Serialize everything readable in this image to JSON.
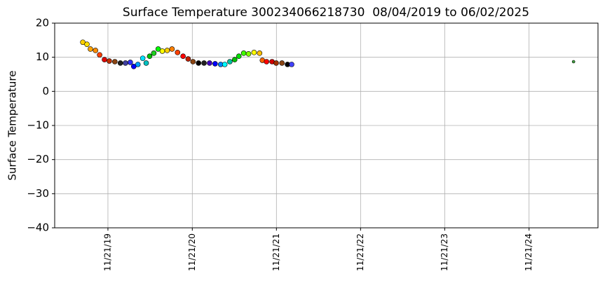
{
  "chart_data": {
    "type": "scatter",
    "title": "Surface Temperature 300234066218730  08/04/2019 to 06/02/2025",
    "ylabel": "Surface Temperature",
    "x": [
      "2019-08-04",
      "2019-08-22",
      "2019-09-06",
      "2019-09-28",
      "2019-10-16",
      "2019-11-06",
      "2019-11-27",
      "2019-12-21",
      "2020-01-14",
      "2020-02-05",
      "2020-02-26",
      "2020-03-12",
      "2020-03-30",
      "2020-04-20",
      "2020-05-05",
      "2020-05-20",
      "2020-06-07",
      "2020-06-26",
      "2020-07-14",
      "2020-08-04",
      "2020-08-25",
      "2020-09-18",
      "2020-10-12",
      "2020-11-03",
      "2020-11-24",
      "2020-12-18",
      "2021-01-11",
      "2021-02-04",
      "2021-02-28",
      "2021-03-24",
      "2021-04-11",
      "2021-05-03",
      "2021-05-24",
      "2021-06-11",
      "2021-07-02",
      "2021-07-23",
      "2021-08-16",
      "2021-09-09",
      "2021-09-21",
      "2021-10-09",
      "2021-11-02",
      "2021-11-20",
      "2021-12-15",
      "2022-01-08",
      "2022-01-26",
      "2025-06-02"
    ],
    "values": [
      14.4,
      13.8,
      12.4,
      12,
      10.7,
      9.3,
      8.9,
      8.7,
      8.3,
      8.3,
      8.5,
      7.3,
      7.9,
      9.7,
      8.3,
      10.3,
      11.2,
      12.4,
      11.8,
      12,
      12.4,
      11.4,
      10.3,
      9.5,
      8.7,
      8.3,
      8.3,
      8.3,
      8.1,
      7.9,
      7.9,
      8.7,
      9.3,
      10.3,
      11.2,
      11,
      11.4,
      11.2,
      9.1,
      8.7,
      8.7,
      8.3,
      8.3,
      7.9,
      7.9,
      8.7
    ],
    "colors": [
      "#ffd000",
      "#ffe000",
      "#ffa500",
      "#ff8c00",
      "#ff4000",
      "#e00000",
      "#c03000",
      "#8b4513",
      "#202020",
      "#4040a0",
      "#3030ff",
      "#0000ff",
      "#00a0ff",
      "#00e0ff",
      "#00c0c0",
      "#00c000",
      "#20d020",
      "#00ff00",
      "#ffff00",
      "#ffd000",
      "#ff8000",
      "#ff4000",
      "#ff0000",
      "#c02000",
      "#8b4513",
      "#000000",
      "#202020",
      "#4000c0",
      "#0000ff",
      "#0080ff",
      "#00ffff",
      "#00c0a0",
      "#00c000",
      "#00e000",
      "#40ff00",
      "#80ff00",
      "#ffff00",
      "#ffc000",
      "#ff6000",
      "#ff0000",
      "#d00000",
      "#a03000",
      "#8b4513",
      "#000000",
      "#4040ff",
      "#40a040"
    ],
    "xlim": [
      "2019-04-04",
      "2025-09-16"
    ],
    "xticks": [
      {
        "value": "2019-11-21",
        "label": "11/21/19"
      },
      {
        "value": "2020-11-21",
        "label": "11/21/20"
      },
      {
        "value": "2021-11-21",
        "label": "11/21/21"
      },
      {
        "value": "2022-11-21",
        "label": "11/21/22"
      },
      {
        "value": "2023-11-21",
        "label": "11/21/23"
      },
      {
        "value": "2024-11-21",
        "label": "11/21/24"
      }
    ],
    "ylim": [
      -40,
      20
    ],
    "yticks": [
      {
        "value": -40,
        "label": "−40"
      },
      {
        "value": -30,
        "label": "−30"
      },
      {
        "value": -20,
        "label": "−20"
      },
      {
        "value": -10,
        "label": "−10"
      },
      0,
      10,
      20
    ],
    "grid": true
  }
}
